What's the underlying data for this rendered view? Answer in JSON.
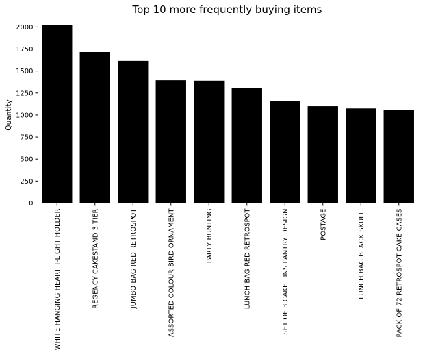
{
  "chart_data": {
    "type": "bar",
    "title": "Top 10 more frequently buying items",
    "xlabel": "",
    "ylabel": "Quantity",
    "ylim": [
      0,
      2100
    ],
    "yticks": [
      0,
      250,
      500,
      750,
      1000,
      1250,
      1500,
      1750,
      2000
    ],
    "categories": [
      "WHITE HANGING HEART T-LIGHT HOLDER",
      "REGENCY CAKESTAND 3 TIER",
      "JUMBO BAG RED RETROSPOT",
      "ASSORTED COLOUR BIRD ORNAMENT",
      "PARTY BUNTING",
      "LUNCH BAG RED RETROSPOT",
      "SET OF 3 CAKE TINS PANTRY DESIGN",
      "POSTAGE",
      "LUNCH BAG  BLACK SKULL.",
      "PACK OF 72 RETROSPOT CAKE CASES"
    ],
    "values": [
      2020,
      1715,
      1615,
      1395,
      1390,
      1305,
      1155,
      1100,
      1075,
      1055
    ],
    "bar_color": "#000000",
    "grid": false,
    "legend": "none"
  }
}
